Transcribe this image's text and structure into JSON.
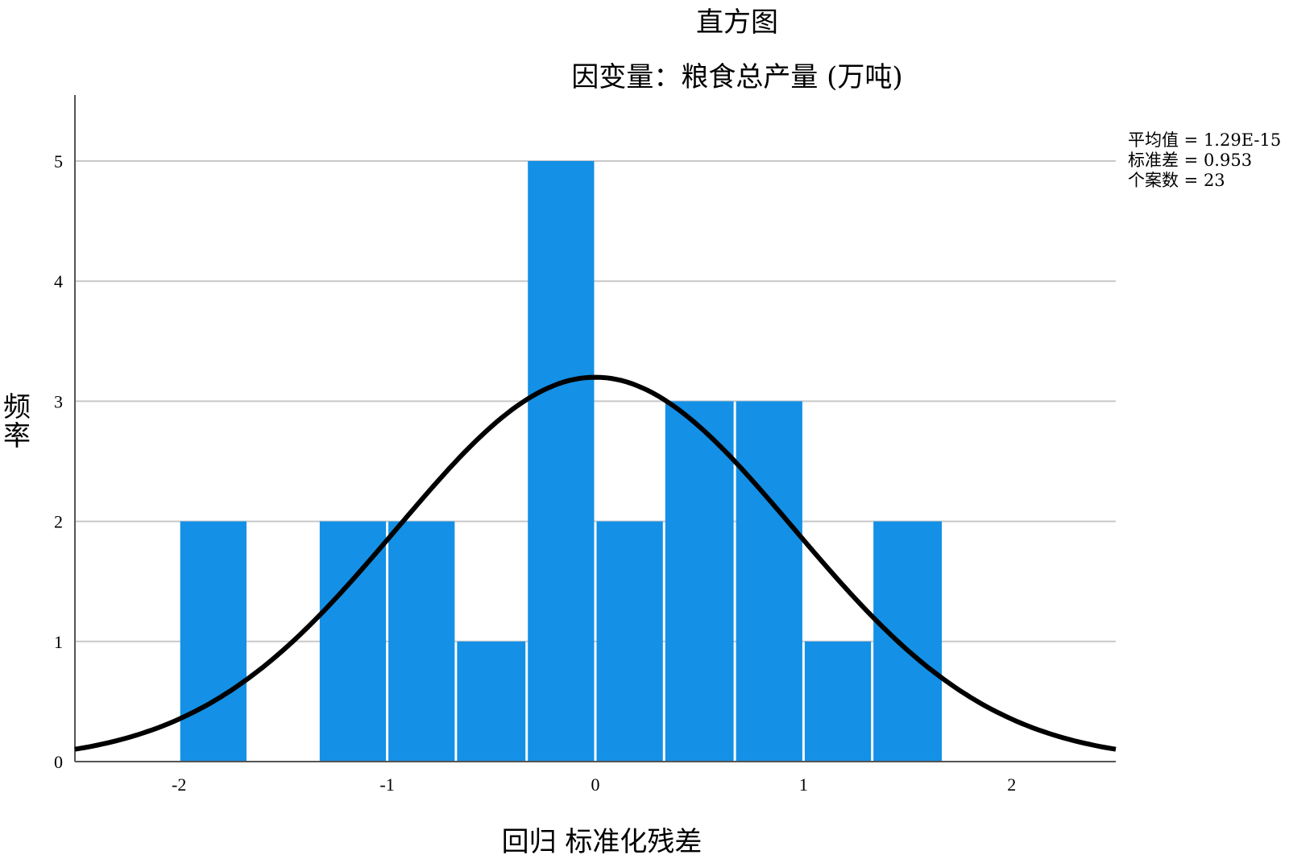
{
  "title": "直方图",
  "subtitle": "因变量：粮食总产量 (万吨)",
  "ylabel": "频率",
  "xlabel": "回归 标准化残差",
  "stats": {
    "mean": "平均值 = 1.29E-15",
    "std": "标准差 = 0.953",
    "n": "个案数 = 23"
  },
  "colors": {
    "bar": "#1490E6",
    "curve": "#000000",
    "grid": "#c8c8c8",
    "axis": "#555555"
  },
  "chart_data": {
    "type": "bar",
    "title": "直方图",
    "subtitle": "因变量：粮食总产量 (万吨)",
    "xlabel": "回归 标准化残差",
    "ylabel": "频率",
    "xlim": [
      -2.5,
      2.5
    ],
    "ylim": [
      0,
      5.5
    ],
    "xticks": [
      -2,
      -1,
      0,
      1,
      2
    ],
    "yticks": [
      0,
      1,
      2,
      3,
      4,
      5
    ],
    "grid": true,
    "bins": [
      {
        "x0": -2.0,
        "x1": -1.67,
        "count": 2
      },
      {
        "x0": -1.33,
        "x1": -1.0,
        "count": 2
      },
      {
        "x0": -1.0,
        "x1": -0.67,
        "count": 2
      },
      {
        "x0": -0.67,
        "x1": -0.33,
        "count": 1
      },
      {
        "x0": -0.33,
        "x1": 0.0,
        "count": 5
      },
      {
        "x0": 0.0,
        "x1": 0.33,
        "count": 2
      },
      {
        "x0": 0.33,
        "x1": 0.67,
        "count": 3
      },
      {
        "x0": 0.67,
        "x1": 1.0,
        "count": 3
      },
      {
        "x0": 1.0,
        "x1": 1.33,
        "count": 1
      },
      {
        "x0": 1.33,
        "x1": 1.67,
        "count": 2
      }
    ],
    "normal_curve": {
      "mean": 0.0,
      "std": 0.953,
      "n": 23,
      "peak": 3.2
    }
  }
}
